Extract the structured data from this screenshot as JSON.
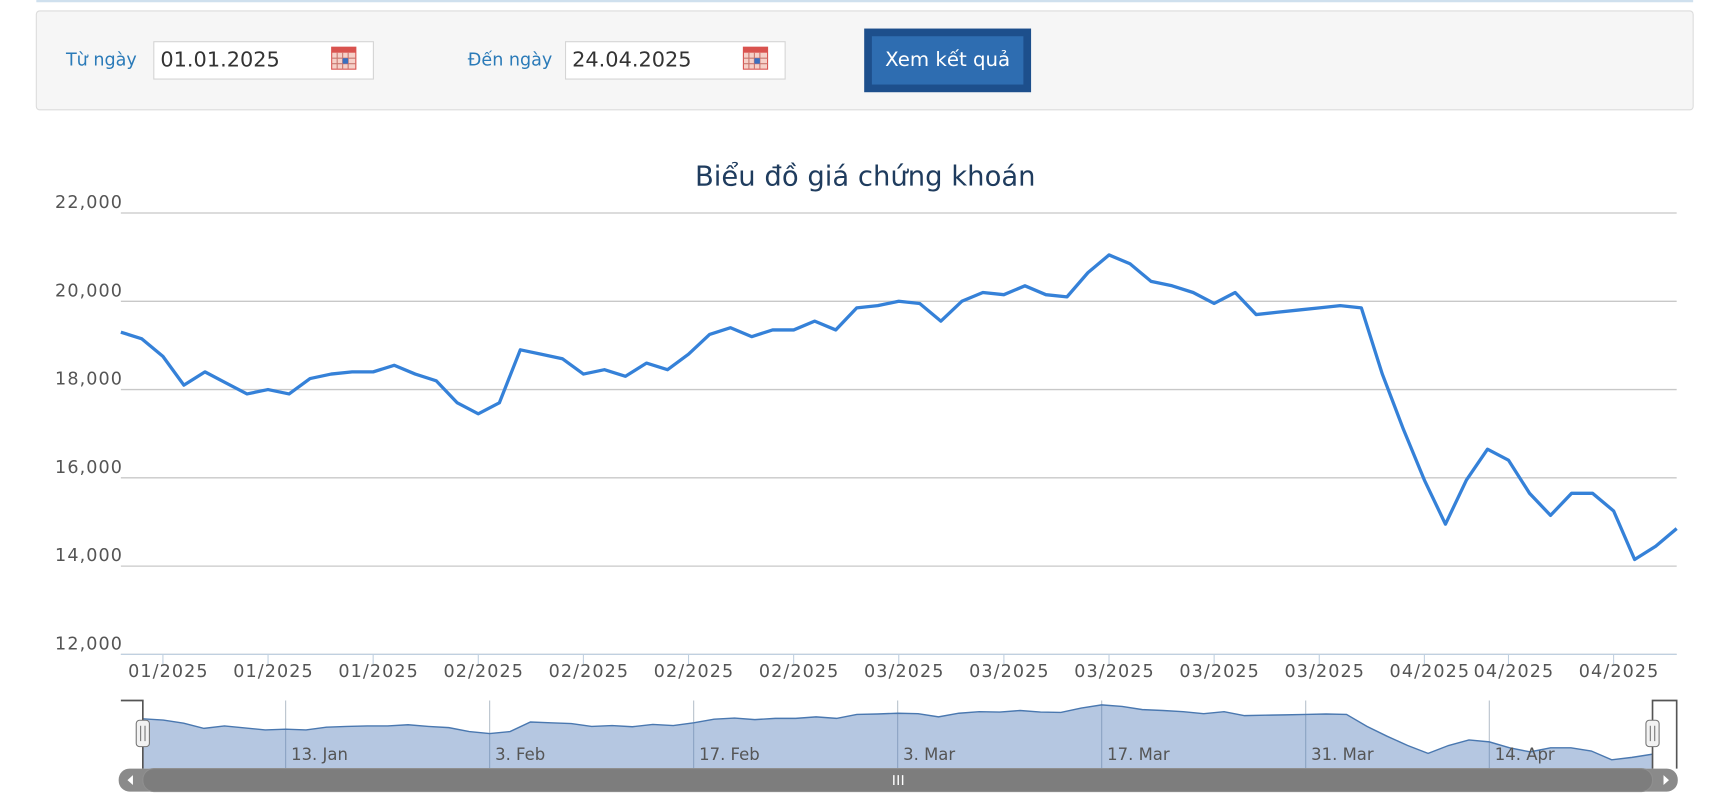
{
  "form": {
    "from_label": "Từ ngày",
    "from_value": "01.01.2025",
    "to_label": "Đến ngày",
    "to_value": "24.04.2025",
    "submit": "Xem kết quả"
  },
  "chart_data": {
    "type": "line",
    "title": "Biểu đồ giá chứng khoán",
    "categories": [
      null,
      null,
      "01/2025",
      null,
      null,
      null,
      null,
      "01/2025",
      null,
      null,
      null,
      null,
      "01/2025",
      null,
      null,
      null,
      null,
      "02/2025",
      null,
      null,
      null,
      null,
      "02/2025",
      null,
      null,
      null,
      null,
      "02/2025",
      null,
      null,
      null,
      null,
      "02/2025",
      null,
      null,
      null,
      null,
      "03/2025",
      null,
      null,
      null,
      null,
      "03/2025",
      null,
      null,
      null,
      null,
      "03/2025",
      null,
      null,
      null,
      null,
      "03/2025",
      null,
      null,
      null,
      null,
      "03/2025",
      null,
      null,
      null,
      null,
      "04/2025",
      null,
      null,
      null,
      "04/2025",
      null,
      null,
      null,
      null,
      "04/2025",
      null,
      null,
      null
    ],
    "navigator_categories": [
      null,
      null,
      null,
      null,
      null,
      null,
      null,
      "13. Jan",
      null,
      null,
      null,
      null,
      null,
      null,
      null,
      null,
      null,
      "3. Feb",
      null,
      null,
      null,
      null,
      null,
      null,
      null,
      null,
      null,
      "17. Feb",
      null,
      null,
      null,
      null,
      null,
      null,
      null,
      null,
      null,
      "3. Mar",
      null,
      null,
      null,
      null,
      null,
      null,
      null,
      null,
      null,
      "17. Mar",
      null,
      null,
      null,
      null,
      null,
      null,
      null,
      null,
      null,
      "31. Mar",
      null,
      null,
      null,
      null,
      null,
      null,
      null,
      null,
      "14. Apr",
      null,
      null,
      null,
      null,
      null,
      null,
      null,
      null
    ],
    "values": [
      19300,
      19150,
      18750,
      18100,
      18400,
      18150,
      17900,
      18000,
      17900,
      18250,
      18350,
      18400,
      18400,
      18550,
      18350,
      18200,
      17700,
      17450,
      17700,
      18900,
      18800,
      18700,
      18350,
      18450,
      18300,
      18600,
      18450,
      18800,
      19250,
      19400,
      19200,
      19350,
      19350,
      19550,
      19350,
      19850,
      19900,
      20000,
      19950,
      19550,
      20000,
      20200,
      20150,
      20350,
      20150,
      20100,
      20650,
      21050,
      20850,
      20450,
      20350,
      20200,
      19950,
      20200,
      19700,
      19750,
      19800,
      19850,
      19900,
      19850,
      18350,
      17100,
      15950,
      14950,
      15950,
      16650,
      16400,
      15650,
      15150,
      15650,
      15650,
      15250,
      14150,
      14450,
      14850
    ],
    "color": "#3581d8",
    "ylim": [
      12000,
      22000
    ],
    "yticks": [
      {
        "value": 12000,
        "label": "12,000"
      },
      {
        "value": 14000,
        "label": "14,000"
      },
      {
        "value": 16000,
        "label": "16,000"
      },
      {
        "value": 18000,
        "label": "18,000"
      },
      {
        "value": 20000,
        "label": "20,000"
      },
      {
        "value": 22000,
        "label": "22,000"
      }
    ],
    "grid": true
  }
}
